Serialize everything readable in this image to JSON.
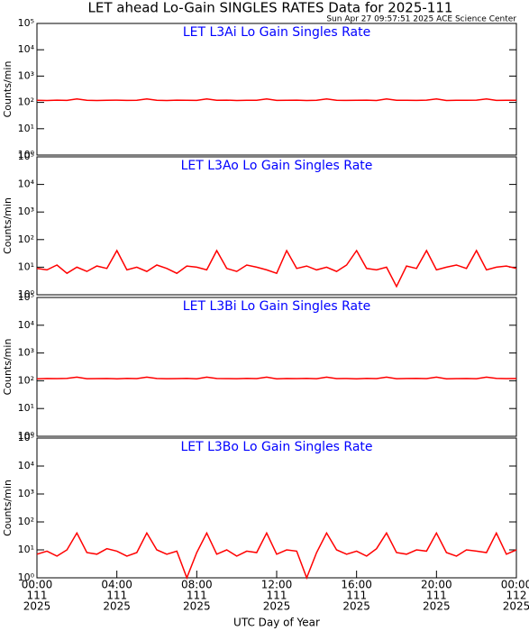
{
  "title": "LET ahead Lo-Gain SINGLES RATES Data for 2025-111",
  "subtitle": "Sun Apr 27 09:57:51 2025 ACE Science Center",
  "chart_data": [
    {
      "type": "line",
      "title": "LET L3Ai Lo Gain Singles Rate",
      "ylabel": "Counts/min",
      "log": true,
      "color": "#ff0000",
      "xlim": [
        0,
        24
      ],
      "ylim": [
        1,
        100000
      ],
      "yticks": [
        {
          "value": 1,
          "label": "10⁰"
        },
        {
          "value": 10,
          "label": "10¹"
        },
        {
          "value": 100,
          "label": "10²"
        },
        {
          "value": 1000,
          "label": "10³"
        },
        {
          "value": 10000,
          "label": "10⁴"
        },
        {
          "value": 100000,
          "label": "10⁵"
        }
      ],
      "x": [
        0,
        0.5,
        1,
        1.5,
        2,
        2.5,
        3,
        3.5,
        4,
        4.5,
        5,
        5.5,
        6,
        6.5,
        7,
        7.5,
        8,
        8.5,
        9,
        9.5,
        10,
        10.5,
        11,
        11.5,
        12,
        12.5,
        13,
        13.5,
        14,
        14.5,
        15,
        15.5,
        16,
        16.5,
        17,
        17.5,
        18,
        18.5,
        19,
        19.5,
        20,
        20.5,
        21,
        21.5,
        22,
        22.5,
        23,
        23.5,
        24
      ],
      "values": [
        120,
        118,
        122,
        119,
        135,
        121,
        118,
        120,
        122,
        119,
        121,
        135,
        120,
        118,
        122,
        121,
        119,
        135,
        120,
        122,
        118,
        121,
        120,
        135,
        119,
        121,
        122,
        118,
        120,
        135,
        121,
        119,
        120,
        122,
        118,
        135,
        121,
        120,
        119,
        122,
        135,
        118,
        121,
        120,
        122,
        135,
        119,
        121,
        120
      ]
    },
    {
      "type": "line",
      "title": "LET L3Ao Lo Gain Singles Rate",
      "ylabel": "Counts/min",
      "log": true,
      "color": "#ff0000",
      "xlim": [
        0,
        24
      ],
      "ylim": [
        1,
        100000
      ],
      "yticks": [
        {
          "value": 1,
          "label": "10⁰"
        },
        {
          "value": 10,
          "label": "10¹"
        },
        {
          "value": 100,
          "label": "10²"
        },
        {
          "value": 1000,
          "label": "10³"
        },
        {
          "value": 10000,
          "label": "10⁴"
        },
        {
          "value": 100000,
          "label": "10⁵"
        }
      ],
      "x": [
        0,
        0.5,
        1,
        1.5,
        2,
        2.5,
        3,
        3.5,
        4,
        4.5,
        5,
        5.5,
        6,
        6.5,
        7,
        7.5,
        8,
        8.5,
        9,
        9.5,
        10,
        10.5,
        11,
        11.5,
        12,
        12.5,
        13,
        13.5,
        14,
        14.5,
        15,
        15.5,
        16,
        16.5,
        17,
        17.5,
        18,
        18.5,
        19,
        19.5,
        20,
        20.5,
        21,
        21.5,
        22,
        22.5,
        23,
        23.5,
        24
      ],
      "values": [
        9,
        8,
        12,
        6,
        10,
        7,
        11,
        9,
        40,
        8,
        10,
        7,
        12,
        9,
        6,
        11,
        10,
        8,
        40,
        9,
        7,
        12,
        10,
        8,
        6,
        40,
        9,
        11,
        8,
        10,
        7,
        12,
        40,
        9,
        8,
        10,
        2,
        11,
        9,
        40,
        8,
        10,
        12,
        9,
        40,
        8,
        10,
        11,
        9
      ]
    },
    {
      "type": "line",
      "title": "LET L3Bi Lo Gain Singles Rate",
      "ylabel": "Counts/min",
      "log": true,
      "color": "#ff0000",
      "xlim": [
        0,
        24
      ],
      "ylim": [
        1,
        100000
      ],
      "yticks": [
        {
          "value": 1,
          "label": "10⁰"
        },
        {
          "value": 10,
          "label": "10¹"
        },
        {
          "value": 100,
          "label": "10²"
        },
        {
          "value": 1000,
          "label": "10³"
        },
        {
          "value": 10000,
          "label": "10⁴"
        },
        {
          "value": 100000,
          "label": "10⁵"
        }
      ],
      "x": [
        0,
        0.5,
        1,
        1.5,
        2,
        2.5,
        3,
        3.5,
        4,
        4.5,
        5,
        5.5,
        6,
        6.5,
        7,
        7.5,
        8,
        8.5,
        9,
        9.5,
        10,
        10.5,
        11,
        11.5,
        12,
        12.5,
        13,
        13.5,
        14,
        14.5,
        15,
        15.5,
        16,
        16.5,
        17,
        17.5,
        18,
        18.5,
        19,
        19.5,
        20,
        20.5,
        21,
        21.5,
        22,
        22.5,
        23,
        23.5,
        24
      ],
      "values": [
        118,
        121,
        120,
        122,
        135,
        119,
        120,
        121,
        118,
        122,
        120,
        135,
        121,
        119,
        120,
        122,
        118,
        135,
        121,
        120,
        119,
        122,
        120,
        135,
        118,
        121,
        120,
        122,
        119,
        135,
        120,
        121,
        118,
        122,
        120,
        135,
        119,
        121,
        122,
        120,
        135,
        118,
        120,
        121,
        119,
        135,
        122,
        120,
        121
      ]
    },
    {
      "type": "line",
      "title": "LET L3Bo Lo Gain Singles Rate",
      "ylabel": "Counts/min",
      "xlabel": "UTC Day of Year",
      "log": true,
      "color": "#ff0000",
      "xlim": [
        0,
        24
      ],
      "ylim": [
        1,
        100000
      ],
      "yticks": [
        {
          "value": 1,
          "label": "10⁰"
        },
        {
          "value": 10,
          "label": "10¹"
        },
        {
          "value": 100,
          "label": "10²"
        },
        {
          "value": 1000,
          "label": "10³"
        },
        {
          "value": 10000,
          "label": "10⁴"
        },
        {
          "value": 100000,
          "label": "10⁵"
        }
      ],
      "xticks": [
        {
          "value": 0,
          "label": "00:00"
        },
        {
          "value": 4,
          "label": "04:00"
        },
        {
          "value": 8,
          "label": "08:00"
        },
        {
          "value": 12,
          "label": "12:00"
        },
        {
          "value": 16,
          "label": "16:00"
        },
        {
          "value": 20,
          "label": "20:00"
        },
        {
          "value": 24,
          "label": "00:00"
        }
      ],
      "xtick_days": [
        "111",
        "111",
        "111",
        "111",
        "111",
        "111",
        "112"
      ],
      "xtick_years": [
        "2025",
        "2025",
        "2025",
        "2025",
        "2025",
        "2025",
        "2025"
      ],
      "x": [
        0,
        0.5,
        1,
        1.5,
        2,
        2.5,
        3,
        3.5,
        4,
        4.5,
        5,
        5.5,
        6,
        6.5,
        7,
        7.5,
        8,
        8.5,
        9,
        9.5,
        10,
        10.5,
        11,
        11.5,
        12,
        12.5,
        13,
        13.5,
        14,
        14.5,
        15,
        15.5,
        16,
        16.5,
        17,
        17.5,
        18,
        18.5,
        19,
        19.5,
        20,
        20.5,
        21,
        21.5,
        22,
        22.5,
        23,
        23.5,
        24
      ],
      "values": [
        7,
        9,
        6,
        10,
        40,
        8,
        7,
        11,
        9,
        6,
        8,
        40,
        10,
        7,
        9,
        1,
        8,
        40,
        7,
        10,
        6,
        9,
        8,
        40,
        7,
        10,
        9,
        1,
        8,
        40,
        10,
        7,
        9,
        6,
        11,
        40,
        8,
        7,
        10,
        9,
        40,
        8,
        6,
        10,
        9,
        8,
        40,
        7,
        10
      ]
    }
  ]
}
